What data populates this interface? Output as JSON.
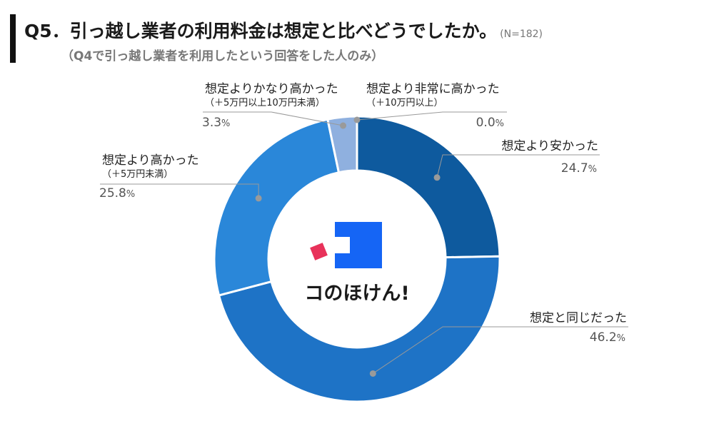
{
  "header": {
    "title": "Q5．引っ越し業者の利用料金は想定と比べどうでしたか。",
    "sample": "(N=182)",
    "subtitle": "（Q4で引っ越し業者を利用したという回答をした人のみ）"
  },
  "logo": {
    "text": "コのほけん!"
  },
  "colors": {
    "primary": "#0e5a9e",
    "secondary": "#1e73c6",
    "tertiary": "#2a87d9",
    "light": "#8fb0df",
    "leader": "#999999",
    "logo_blue": "#1565f5",
    "logo_red": "#e8325a"
  },
  "chart_data": {
    "type": "pie",
    "donut": true,
    "categories": [
      "想定より安かった",
      "想定と同じだった",
      "想定より高かった",
      "想定よりかなり高かった",
      "想定より非常に高かった"
    ],
    "sublabels": [
      "",
      "",
      "（＋5万円未満）",
      "（＋5万円以上10万円未満）",
      "（＋10万円以上）"
    ],
    "values": [
      24.7,
      46.2,
      25.8,
      3.3,
      0.0
    ],
    "value_labels": [
      "24.7",
      "46.2",
      "25.8",
      "3.3",
      "0.0"
    ],
    "unit": "%",
    "slice_colors": [
      "#0e5a9e",
      "#1e73c6",
      "#2a87d9",
      "#8fb0df",
      "#5b87c9"
    ]
  }
}
